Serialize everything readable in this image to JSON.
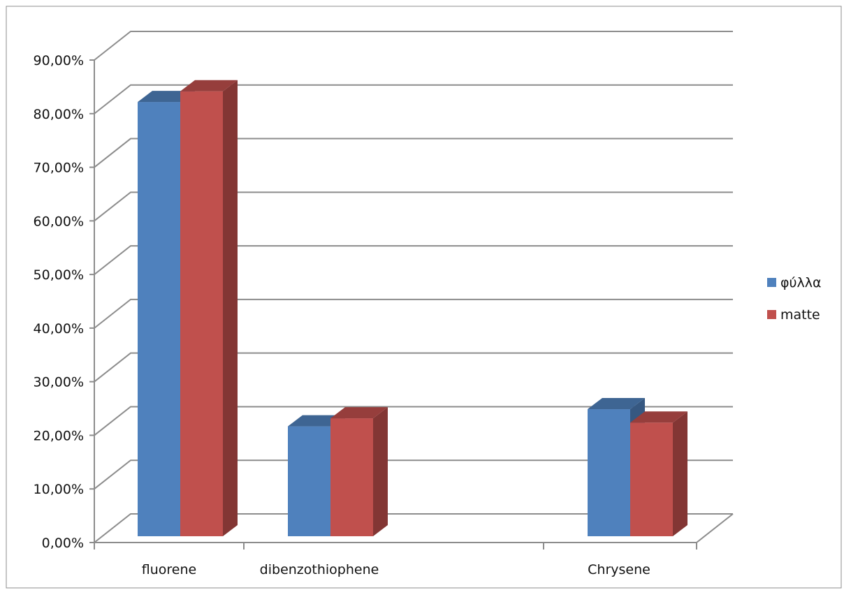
{
  "chart_data": {
    "type": "bar",
    "categories": [
      "fluorene",
      "dibenzothiophene",
      "Chrysene"
    ],
    "series": [
      {
        "name": "φύλλα",
        "values": [
          0.81,
          0.205,
          0.237
        ],
        "color": "#4f81bd"
      },
      {
        "name": "matte",
        "values": [
          0.83,
          0.22,
          0.212
        ],
        "color": "#c0504d"
      }
    ],
    "ylim": [
      0,
      0.9
    ],
    "yticks": [
      "0,00%",
      "10,00%",
      "20,00%",
      "30,00%",
      "40,00%",
      "50,00%",
      "60,00%",
      "70,00%",
      "80,00%",
      "90,00%"
    ],
    "style": "3d-clustered-column",
    "grid": true,
    "legend_position": "right"
  }
}
